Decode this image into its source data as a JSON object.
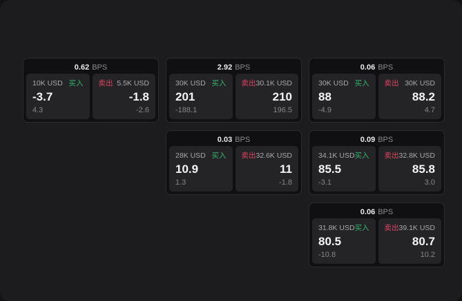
{
  "labels": {
    "bps_unit": "BPS",
    "buy": "买入",
    "sell": "卖出"
  },
  "colors": {
    "buy_green": "#32b56f",
    "sell_red": "#dd4461",
    "screen_bg": "#1c1c1e",
    "card_bg": "#101012",
    "pane_bg": "#242427"
  },
  "cards": [
    {
      "bps": "0.62",
      "buy": {
        "size": "10K USD",
        "price": "-3.7",
        "sub": "4.3"
      },
      "sell": {
        "size": "5.5K USD",
        "price": "-1.8",
        "sub": "-2.6"
      }
    },
    {
      "bps": "2.92",
      "buy": {
        "size": "30K USD",
        "price": "201",
        "sub": "-188.1"
      },
      "sell": {
        "size": "30.1K USD",
        "price": "210",
        "sub": "196.5"
      }
    },
    {
      "bps": "0.06",
      "buy": {
        "size": "30K USD",
        "price": "88",
        "sub": "-4.9"
      },
      "sell": {
        "size": "30K USD",
        "price": "88.2",
        "sub": "4.7"
      }
    },
    {
      "bps": "0.03",
      "buy": {
        "size": "28K USD",
        "price": "10.9",
        "sub": "1.3"
      },
      "sell": {
        "size": "32.6K USD",
        "price": "11",
        "sub": "-1.8"
      }
    },
    {
      "bps": "0.09",
      "buy": {
        "size": "34.1K USD",
        "price": "85.5",
        "sub": "-3.1"
      },
      "sell": {
        "size": "32.8K USD",
        "price": "85.8",
        "sub": "3.0"
      }
    },
    {
      "bps": "0.06",
      "buy": {
        "size": "31.8K USD",
        "price": "80.5",
        "sub": "-10.8"
      },
      "sell": {
        "size": "39.1K USD",
        "price": "80.7",
        "sub": "10.2"
      }
    }
  ]
}
